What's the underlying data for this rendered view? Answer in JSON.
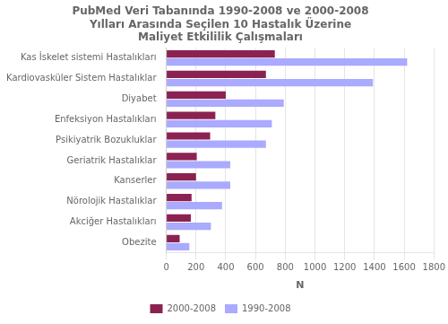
{
  "chart_data": {
    "type": "bar",
    "orientation": "horizontal",
    "title": "PubMed Veri Tabanında 1990-2008 ve 2000-2008\nYılları Arasında Seçilen 10 Hastalık Üzerine\nMaliyet Etkililik Çalışmaları",
    "categories": [
      "Kas İskelet sistemi Hastalıkları",
      "Kardiovasküler Sistem Hastalıklar",
      "Diyabet",
      "Enfeksiyon Hastalıkları",
      "Psikiyatrik Bozukluklar",
      "Geriatrik Hastalıklar",
      "Kanserler",
      "Nörolojik Hastalıklar",
      "Akciğer Hastalıkları",
      "Obezite"
    ],
    "series": [
      {
        "name": "2000-2008",
        "color": "#8B2252",
        "values": [
          730,
          670,
          400,
          330,
          295,
          205,
          200,
          170,
          165,
          90
        ]
      },
      {
        "name": "1990-2008",
        "color": "#AAAAFF",
        "values": [
          1620,
          1390,
          790,
          710,
          670,
          430,
          430,
          375,
          300,
          155
        ]
      }
    ],
    "xlabel": "N",
    "xlim": [
      0,
      1800
    ],
    "xticks": [
      0,
      200,
      400,
      600,
      800,
      1000,
      1200,
      1400,
      1600,
      1800
    ],
    "grid": true,
    "legend": "bottom"
  }
}
